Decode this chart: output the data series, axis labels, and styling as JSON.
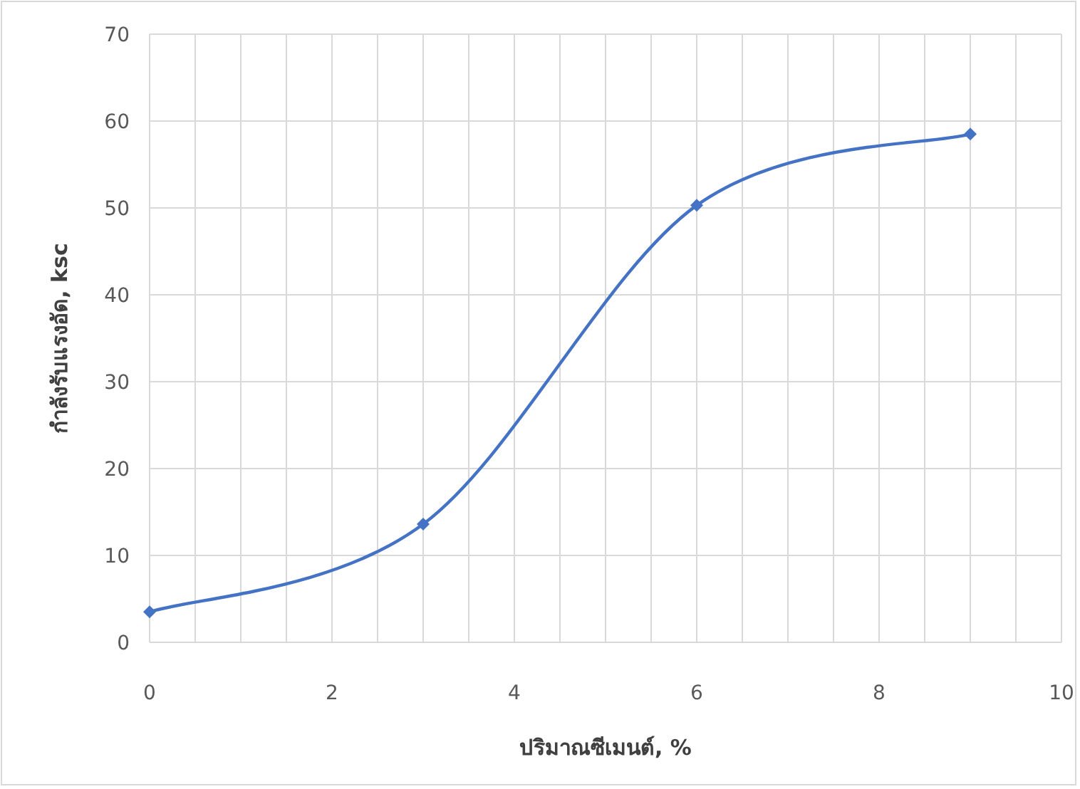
{
  "chart_data": {
    "type": "line",
    "xlabel": "ปริมาณซีเมนต์, %",
    "ylabel": "กำลังรับแรงอัด, ksc",
    "x": [
      0,
      3,
      6,
      9
    ],
    "series": [
      {
        "color": "#4472c4",
        "values": [
          3.5,
          13.6,
          50.3,
          58.5
        ]
      }
    ],
    "xlim": [
      0,
      10
    ],
    "ylim": [
      0,
      70
    ],
    "xticks": [
      0,
      {
        "value": 0.5,
        "label": null
      },
      {
        "value": 1,
        "label": null
      },
      {
        "value": 1.5,
        "label": null
      },
      2,
      {
        "value": 2.5,
        "label": null
      },
      {
        "value": 3,
        "label": null
      },
      {
        "value": 3.5,
        "label": null
      },
      4,
      {
        "value": 4.5,
        "label": null
      },
      {
        "value": 5,
        "label": null
      },
      {
        "value": 5.5,
        "label": null
      },
      6,
      {
        "value": 6.5,
        "label": null
      },
      {
        "value": 7,
        "label": null
      },
      {
        "value": 7.5,
        "label": null
      },
      8,
      {
        "value": 8.5,
        "label": null
      },
      {
        "value": 9,
        "label": null
      },
      {
        "value": 9.5,
        "label": null
      },
      10
    ],
    "yticks": [
      0,
      10,
      20,
      30,
      40,
      50,
      60,
      70
    ],
    "grid": true,
    "marker": "diamond",
    "line_style": "solid"
  }
}
